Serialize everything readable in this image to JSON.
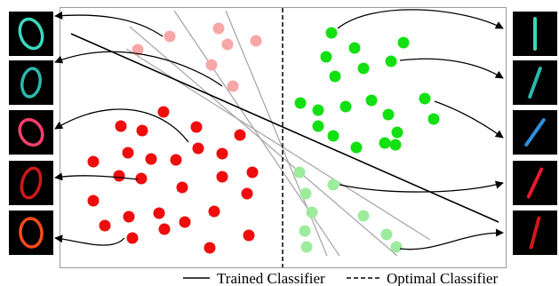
{
  "legend": {
    "trained_label": "Trained Classifier",
    "optimal_label": "Optimal Classifier"
  },
  "colors": {
    "frame": "#9a9a9a",
    "trained_line": "#000000",
    "optimal_line": "#000000",
    "candidate_lines": "#a9a9a9",
    "light_red": "#f7a7a7",
    "red": "#ee0c0c",
    "green": "#12e012",
    "light_green": "#9cec9c",
    "thumb_bg": "#000000"
  },
  "thumbnails": {
    "left": [
      {
        "digit": "0",
        "color": "#39d9bd"
      },
      {
        "digit": "0",
        "color": "#2bb8ad"
      },
      {
        "digit": "0",
        "color": "#ff3d6b"
      },
      {
        "digit": "0",
        "color": "#d01818"
      },
      {
        "digit": "0",
        "color": "#ff4a1a"
      }
    ],
    "right": [
      {
        "digit": "1",
        "color": "#39d9bd"
      },
      {
        "digit": "1",
        "color": "#2bb8ad"
      },
      {
        "digit": "1",
        "color": "#2e8fd9"
      },
      {
        "digit": "1",
        "color": "#e8192e"
      },
      {
        "digit": "1",
        "color": "#d01818"
      }
    ]
  }
}
